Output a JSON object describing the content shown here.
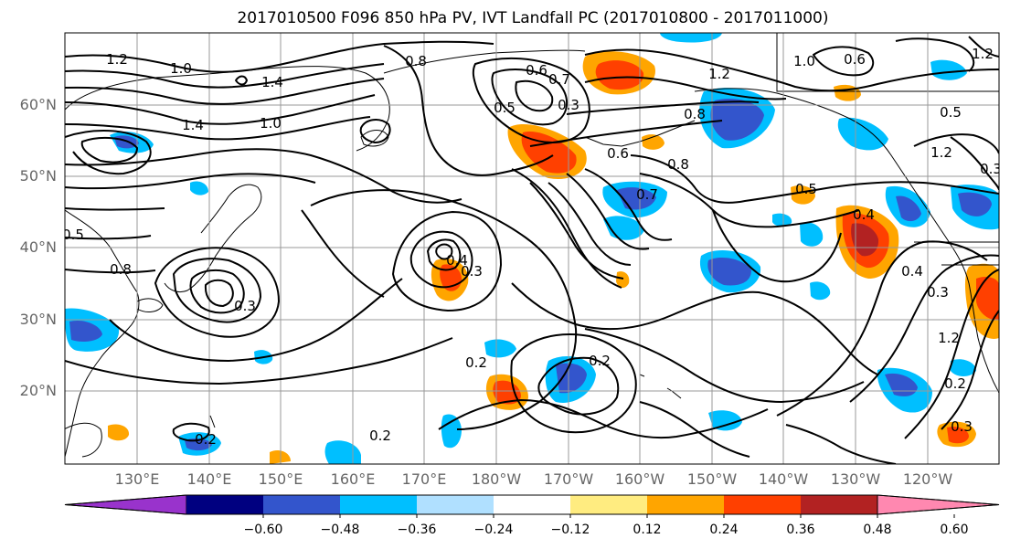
{
  "title": "2017010500 F096 850 hPa PV, IVT Landfall PC (2017010800 - 2017011000)",
  "map": {
    "lat_labels": [
      "20°N",
      "30°N",
      "40°N",
      "50°N",
      "60°N"
    ],
    "lon_labels": [
      "130°E",
      "140°E",
      "150°E",
      "160°E",
      "170°E",
      "180°W",
      "170°W",
      "160°W",
      "150°W",
      "140°W",
      "130°W",
      "120°W"
    ]
  },
  "colorbar": {
    "colors": [
      "#9933cc",
      "#000080",
      "#3355cc",
      "#00bfff",
      "#b0e0ff",
      "#ffffff",
      "#ffec80",
      "#ffa500",
      "#ff4000",
      "#b22222",
      "#ff88b0"
    ],
    "tick_labels": [
      "−0.60",
      "−0.48",
      "−0.36",
      "−0.24",
      "−0.12",
      "0.12",
      "0.24",
      "0.36",
      "0.48",
      "0.60"
    ]
  },
  "contour_labels": [
    "1.2",
    "1.0",
    "1.4",
    "0.8",
    "1.4",
    "1.0",
    "0.5",
    "0.6",
    "0.7",
    "0.3",
    "1.2",
    "0.6",
    "0.8",
    "1.0",
    "0.6",
    "0.8",
    "0.7",
    "0.5",
    "0.4",
    "1.2",
    "1.2",
    "0.5",
    "0.8",
    "0.3",
    "0.3",
    "0.4",
    "0.3",
    "0.2",
    "0.2",
    "0.2",
    "0.2",
    "0.2",
    "0.3",
    "0.4",
    "1.2",
    "0.3",
    "0.5"
  ]
}
